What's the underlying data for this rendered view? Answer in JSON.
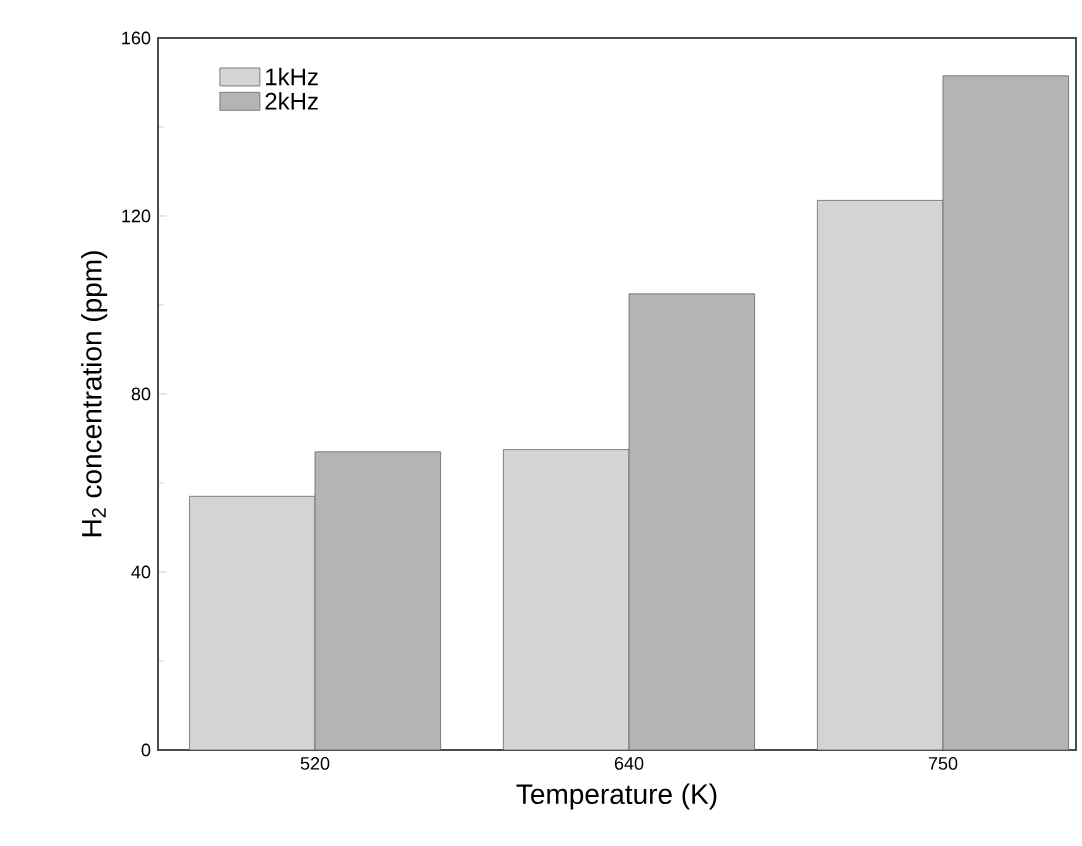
{
  "chart_data": {
    "type": "bar",
    "xlabel": "Temperature (K)",
    "ylabel": "H$_{2}$ concentration (ppm)",
    "categories": [
      "520",
      "640",
      "750"
    ],
    "series": [
      {
        "name": "1kHz",
        "color": "#d4d4d4",
        "values": [
          57,
          67.5,
          123.5
        ]
      },
      {
        "name": "2kHz",
        "color": "#b4b4b4",
        "values": [
          67,
          102.5,
          151.5
        ]
      }
    ],
    "ylim": [
      0,
      160
    ],
    "yticks": [
      0,
      40,
      80,
      120,
      160
    ],
    "legend": "top left"
  }
}
